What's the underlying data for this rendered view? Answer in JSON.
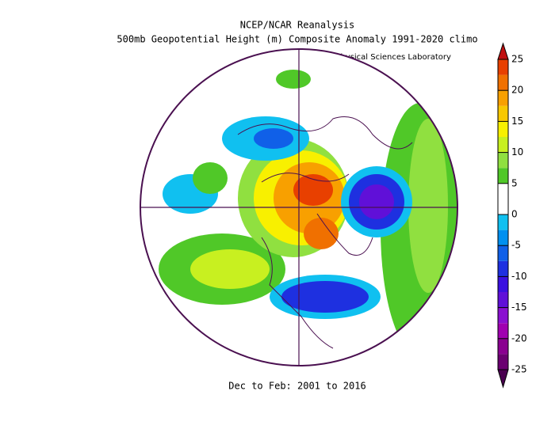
{
  "header": {
    "title": "NCEP/NCAR Reanalysis",
    "subtitle": "500mb Geopotential Height (m) Composite Anomaly 1991-2020 climo",
    "credit": "NOAA Physical Sciences Laboratory"
  },
  "footer": "Dec to Feb: 2001 to 2016",
  "colorbar": {
    "ticks": [
      -25,
      -20,
      -15,
      -10,
      -5,
      0,
      5,
      10,
      15,
      20,
      25
    ],
    "step": 2.5,
    "colors": [
      "#6a0070",
      "#8a0090",
      "#a000b0",
      "#8a10d0",
      "#6010d8",
      "#3a10e0",
      "#1e30e0",
      "#1060e8",
      "#0090f0",
      "#10c0f0",
      "#ffffff",
      "#ffffff",
      "#50c828",
      "#90e040",
      "#c8f020",
      "#f8f000",
      "#f8c800",
      "#f8a000",
      "#f07000",
      "#e84000"
    ],
    "low_color": "#4a0050",
    "high_color": "#c01010"
  }
}
